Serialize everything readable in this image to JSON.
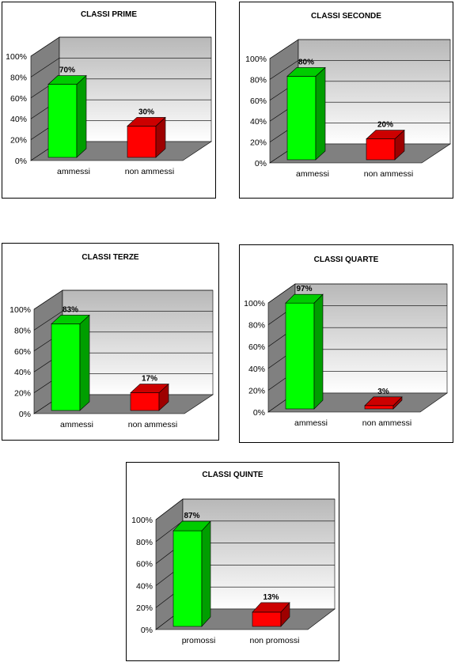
{
  "colors": {
    "pass": "#00ff00",
    "fail": "#ff0000"
  },
  "chart_data": [
    {
      "type": "bar",
      "title": "CLASSI PRIME",
      "categories": [
        "ammessi",
        "non ammessi"
      ],
      "values": [
        70,
        30
      ],
      "value_labels": [
        "70%",
        "30%"
      ],
      "y_ticks": [
        "0%",
        "20%",
        "40%",
        "60%",
        "80%",
        "100%"
      ],
      "ylim": [
        0,
        100
      ],
      "legend": "none",
      "grid": true
    },
    {
      "type": "bar",
      "title": "CLASSI SECONDE",
      "categories": [
        "ammessi",
        "non ammessi"
      ],
      "values": [
        80,
        20
      ],
      "value_labels": [
        "80%",
        "20%"
      ],
      "y_ticks": [
        "0%",
        "20%",
        "40%",
        "60%",
        "80%",
        "100%"
      ],
      "ylim": [
        0,
        100
      ],
      "legend": "none",
      "grid": true
    },
    {
      "type": "bar",
      "title": "CLASSI TERZE",
      "categories": [
        "ammessi",
        "non ammessi"
      ],
      "values": [
        83,
        17
      ],
      "value_labels": [
        "83%",
        "17%"
      ],
      "y_ticks": [
        "0%",
        "20%",
        "40%",
        "60%",
        "80%",
        "100%"
      ],
      "ylim": [
        0,
        100
      ],
      "legend": "none",
      "grid": true
    },
    {
      "type": "bar",
      "title": "CLASSI QUARTE",
      "categories": [
        "ammessi",
        "non ammessi"
      ],
      "values": [
        97,
        3
      ],
      "value_labels": [
        "97%",
        "3%"
      ],
      "y_ticks": [
        "0%",
        "20%",
        "40%",
        "60%",
        "80%",
        "100%"
      ],
      "ylim": [
        0,
        100
      ],
      "legend": "none",
      "grid": true
    },
    {
      "type": "bar",
      "title": "CLASSI QUINTE",
      "categories": [
        "promossi",
        "non promossi"
      ],
      "values": [
        87,
        13
      ],
      "value_labels": [
        "87%",
        "13%"
      ],
      "y_ticks": [
        "0%",
        "20%",
        "40%",
        "60%",
        "80%",
        "100%"
      ],
      "ylim": [
        0,
        100
      ],
      "legend": "none",
      "grid": true
    }
  ]
}
